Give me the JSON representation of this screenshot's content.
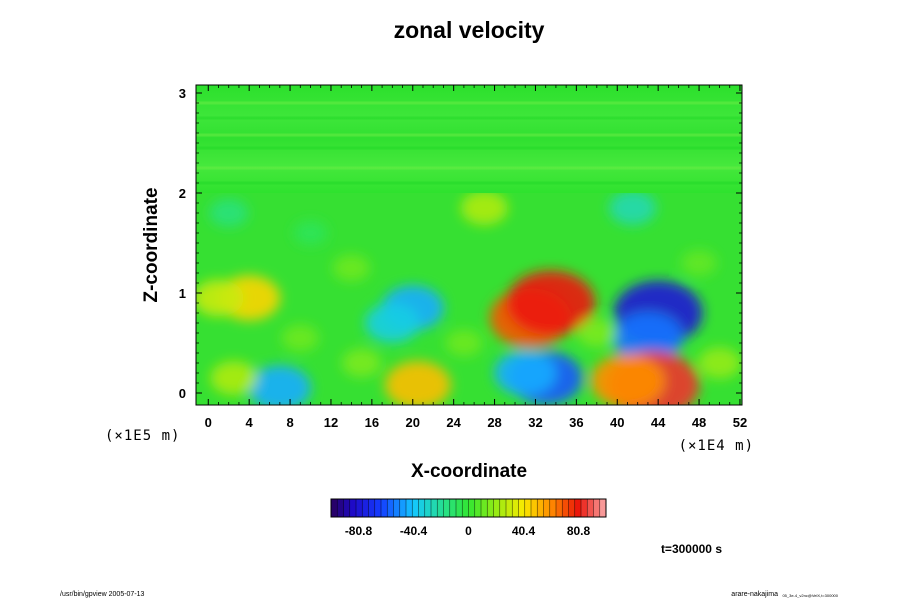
{
  "chart_data": {
    "type": "heatmap",
    "title": "zonal velocity",
    "xlabel": "X-coordinate",
    "ylabel": "Z-coordinate",
    "x_ticks": [
      "0",
      "4",
      "8",
      "12",
      "16",
      "20",
      "24",
      "28",
      "32",
      "36",
      "40",
      "44",
      "48",
      "52"
    ],
    "x_tick_values": [
      0,
      4,
      8,
      12,
      16,
      20,
      24,
      28,
      32,
      36,
      40,
      44,
      48,
      52
    ],
    "y_ticks": [
      "0",
      "1",
      "2",
      "3"
    ],
    "y_tick_values": [
      0,
      1,
      2,
      3
    ],
    "xlim": [
      -1.2,
      52.2
    ],
    "ylim": [
      -0.12,
      3.08
    ],
    "x_scale_note": "(×1E4 m)",
    "y_scale_note": "(×1E5 m)",
    "colorbar": {
      "labels": [
        "-80.8",
        "-40.4",
        "0",
        "40.4",
        "80.8"
      ],
      "values": [
        -80.8,
        -40.4,
        0,
        40.4,
        80.8
      ],
      "range": [
        -101,
        101
      ]
    },
    "time_label": "t=300000 s",
    "features": [
      {
        "x": 31.5,
        "z": 0.75,
        "value": 70
      },
      {
        "x": 33.5,
        "z": 0.9,
        "value": 80
      },
      {
        "x": 44,
        "z": 0.8,
        "value": -80
      },
      {
        "x": 43,
        "z": 0.55,
        "value": -55
      },
      {
        "x": 20,
        "z": 0.85,
        "value": -45
      },
      {
        "x": 18,
        "z": 0.7,
        "value": -35
      },
      {
        "x": 4,
        "z": 0.95,
        "value": 45
      },
      {
        "x": 1,
        "z": 0.95,
        "value": 30
      },
      {
        "x": 33,
        "z": 0.15,
        "value": -60
      },
      {
        "x": 31,
        "z": 0.2,
        "value": -45
      },
      {
        "x": 43.5,
        "z": 0.08,
        "value": 85
      },
      {
        "x": 41,
        "z": 0.12,
        "value": 60
      },
      {
        "x": 20.5,
        "z": 0.08,
        "value": 50
      },
      {
        "x": 7,
        "z": 0.05,
        "value": -45
      },
      {
        "x": 2.5,
        "z": 0.15,
        "value": 25
      },
      {
        "x": 2,
        "z": 1.8,
        "value": -15
      },
      {
        "x": 27,
        "z": 1.85,
        "value": 25
      },
      {
        "x": 41.5,
        "z": 1.85,
        "value": -25
      },
      {
        "x": 10,
        "z": 1.6,
        "value": -8
      },
      {
        "x": 15,
        "z": 0.3,
        "value": 15
      },
      {
        "x": 38,
        "z": 0.6,
        "value": 15
      },
      {
        "x": 25,
        "z": 0.5,
        "value": 12
      },
      {
        "x": 14,
        "z": 1.25,
        "value": 12
      },
      {
        "x": 48,
        "z": 1.3,
        "value": 10
      },
      {
        "x": 50,
        "z": 0.3,
        "value": 20
      },
      {
        "x": 9,
        "z": 0.55,
        "value": 12
      }
    ]
  },
  "footer": {
    "left": "/usr/bin/gpview 2005-07-13",
    "right_main": "arare-nakajima",
    "right_detail": "05_3e-4_v2nc@VelX,t=300000"
  }
}
